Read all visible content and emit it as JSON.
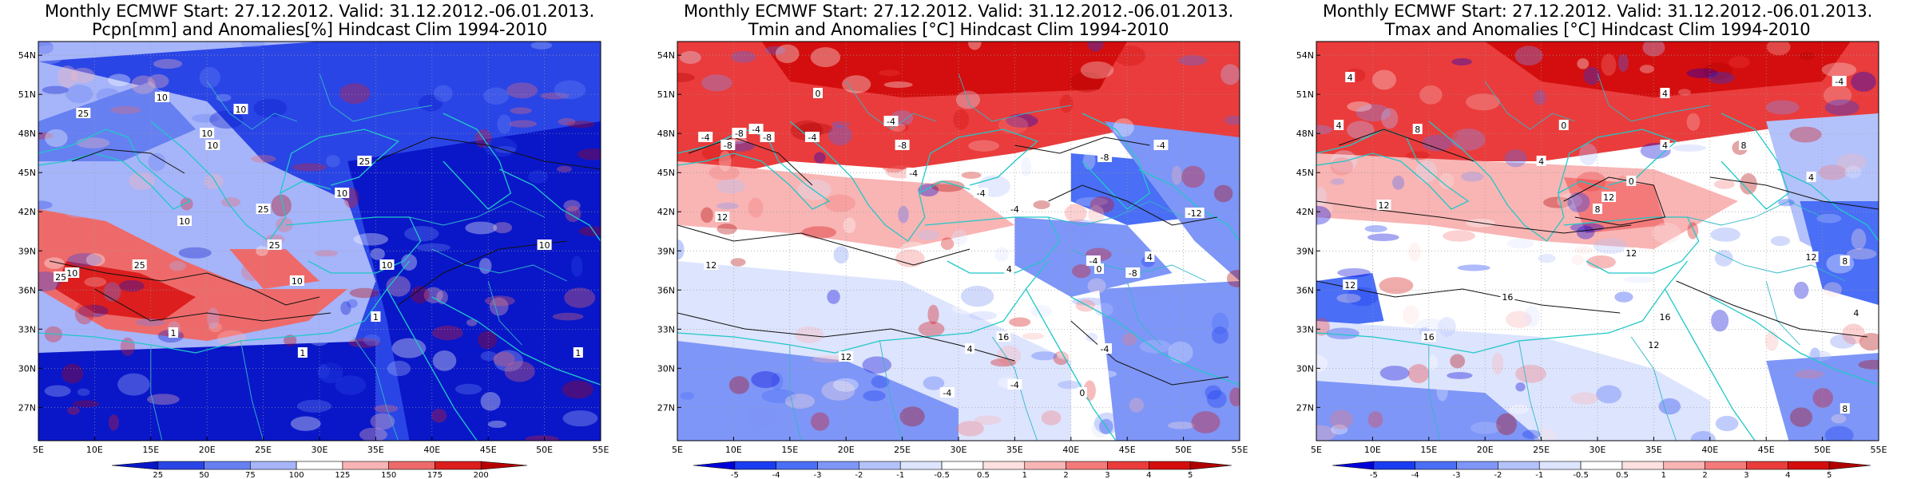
{
  "panels": [
    {
      "title_line1": "Monthly ECMWF Start: 27.12.2012. Valid: 31.12.2012.-06.01.2013.",
      "title_line2": "Pcpn[mm] and Anomalies[%] Hindcast Clim 1994-2010",
      "colorbar_labels": [
        "25",
        "50",
        "75",
        "100",
        "125",
        "150",
        "175",
        "200"
      ],
      "colorbar_colors": [
        "#0a17c8",
        "#2a45e6",
        "#6680f2",
        "#a6b4fa",
        "#ffffff",
        "#f8b4b4",
        "#ee6a6a",
        "#dc1e1e",
        "#b80000"
      ],
      "contour_labels": [
        "10",
        "25",
        "10",
        "10",
        "10",
        "25",
        "10",
        "25",
        "10",
        "25",
        "10",
        "25",
        "25",
        "1",
        "10",
        "10",
        "1",
        "1",
        "1",
        "10"
      ]
    },
    {
      "title_line1": "Monthly ECMWF Start: 27.12.2012. Valid: 31.12.2012.-06.01.2013.",
      "title_line2": "Tmin and Anomalies [°C] Hindcast Clim 1994-2010",
      "colorbar_labels": [
        "-5",
        "-4",
        "-3",
        "-2",
        "-1",
        "-0.5",
        "0.5",
        "1",
        "2",
        "3",
        "4",
        "5"
      ],
      "colorbar_colors": [
        "#0000d8",
        "#1a3cf0",
        "#4a6ef5",
        "#7e96f7",
        "#b4c2fb",
        "#dde4fd",
        "#ffffff",
        "#fde0e0",
        "#f9b4b4",
        "#f47a7a",
        "#ea3c3c",
        "#d40e0e",
        "#b00000"
      ],
      "contour_labels": [
        "0",
        "-4",
        "-8",
        "-4",
        "-8",
        "-4",
        "-8",
        "-4",
        "-8",
        "-4",
        "12",
        "-4",
        "-4",
        "-8",
        "-4",
        "-12",
        "12",
        "-4",
        "0",
        "-8",
        "4",
        "12",
        "16",
        "4",
        "-4",
        "0",
        "-4",
        "-4",
        "4"
      ]
    },
    {
      "title_line1": "Monthly ECMWF Start: 27.12.2012. Valid: 31.12.2012.-06.01.2013.",
      "title_line2": "Tmax and Anomalies [°C] Hindcast Clim 1994-2010",
      "colorbar_labels": [
        "-5",
        "-4",
        "-3",
        "-2",
        "-1",
        "-0.5",
        "0.5",
        "1",
        "2",
        "3",
        "4",
        "5"
      ],
      "colorbar_colors": [
        "#0000d8",
        "#1a3cf0",
        "#4a6ef5",
        "#7e96f7",
        "#b4c2fb",
        "#dde4fd",
        "#ffffff",
        "#fde0e0",
        "#f9b4b4",
        "#f47a7a",
        "#ea3c3c",
        "#d40e0e",
        "#b00000"
      ],
      "contour_labels": [
        "4",
        "-4",
        "4",
        "0",
        "4",
        "8",
        "4",
        "0",
        "4",
        "8",
        "12",
        "12",
        "8",
        "4",
        "12",
        "16",
        "12",
        "12",
        "16",
        "16",
        "8",
        "4",
        "12",
        "8"
      ]
    }
  ],
  "lat_ticks": [
    "54N",
    "51N",
    "48N",
    "45N",
    "42N",
    "39N",
    "36N",
    "33N",
    "30N",
    "27N"
  ],
  "lon_ticks": [
    "5E",
    "10E",
    "15E",
    "20E",
    "25E",
    "30E",
    "35E",
    "40E",
    "45E",
    "50E",
    "55E"
  ]
}
